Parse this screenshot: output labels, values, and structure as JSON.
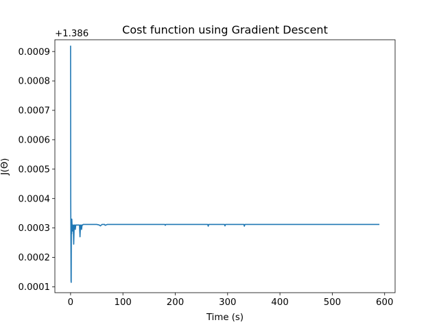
{
  "chart_data": {
    "type": "line",
    "title": "Cost function using Gradient Descent",
    "xlabel": "Time (s)",
    "ylabel": "J(Θ)",
    "y_offset_label": "+1.386",
    "xlim": [
      -30,
      620
    ],
    "ylim": [
      8e-05,
      0.00094
    ],
    "x_ticks": [
      0,
      100,
      200,
      300,
      400,
      500,
      600
    ],
    "x_tick_labels": [
      "0",
      "100",
      "200",
      "300",
      "400",
      "500",
      "600"
    ],
    "y_ticks": [
      0.0001,
      0.0002,
      0.0003,
      0.0004,
      0.0005,
      0.0006,
      0.0007,
      0.0008,
      0.0009
    ],
    "y_tick_labels": [
      "0.0001",
      "0.0002",
      "0.0003",
      "0.0004",
      "0.0005",
      "0.0006",
      "0.0007",
      "0.0008",
      "0.0009"
    ],
    "grid": false,
    "line_color": "#1f77b4",
    "series": [
      {
        "x": [
          0,
          0.3,
          0.6,
          0.9,
          1.2,
          1.6,
          2.0,
          2.4,
          2.8,
          3.2,
          3.6,
          4.2,
          5,
          6,
          7,
          8,
          9,
          10,
          11,
          12,
          13,
          14,
          15,
          16,
          17,
          18,
          19,
          20,
          21,
          22,
          23,
          24,
          26,
          30,
          40,
          50,
          55,
          57,
          60,
          65,
          66,
          70,
          100,
          150,
          180,
          181,
          182,
          200,
          250,
          262,
          263,
          264,
          280,
          294,
          295,
          296,
          320,
          331,
          332,
          333,
          350,
          400,
          450,
          500,
          550,
          590
        ],
        "y": [
          0.00092,
          0.0004,
          0.00028,
          0.00012,
          0.000115,
          0.00033,
          0.00028,
          0.00033,
          0.00031,
          0.00029,
          0.00031,
          0.00029,
          0.00031,
          0.000245,
          0.00031,
          0.00031,
          0.000295,
          0.00031,
          0.00031,
          0.00031,
          0.00031,
          0.00031,
          0.00031,
          0.00031,
          0.00031,
          0.00027,
          0.00031,
          0.00031,
          0.000295,
          0.00031,
          0.00031,
          0.000312,
          0.000312,
          0.000312,
          0.000312,
          0.000312,
          0.00031,
          0.000307,
          0.000312,
          0.000312,
          0.000309,
          0.000312,
          0.000312,
          0.000312,
          0.000312,
          0.000309,
          0.000312,
          0.000312,
          0.000312,
          0.000312,
          0.000306,
          0.000312,
          0.000312,
          0.000312,
          0.000307,
          0.000312,
          0.000312,
          0.000312,
          0.000306,
          0.000312,
          0.000312,
          0.000312,
          0.000312,
          0.000312,
          0.000312,
          0.000312
        ]
      }
    ]
  }
}
